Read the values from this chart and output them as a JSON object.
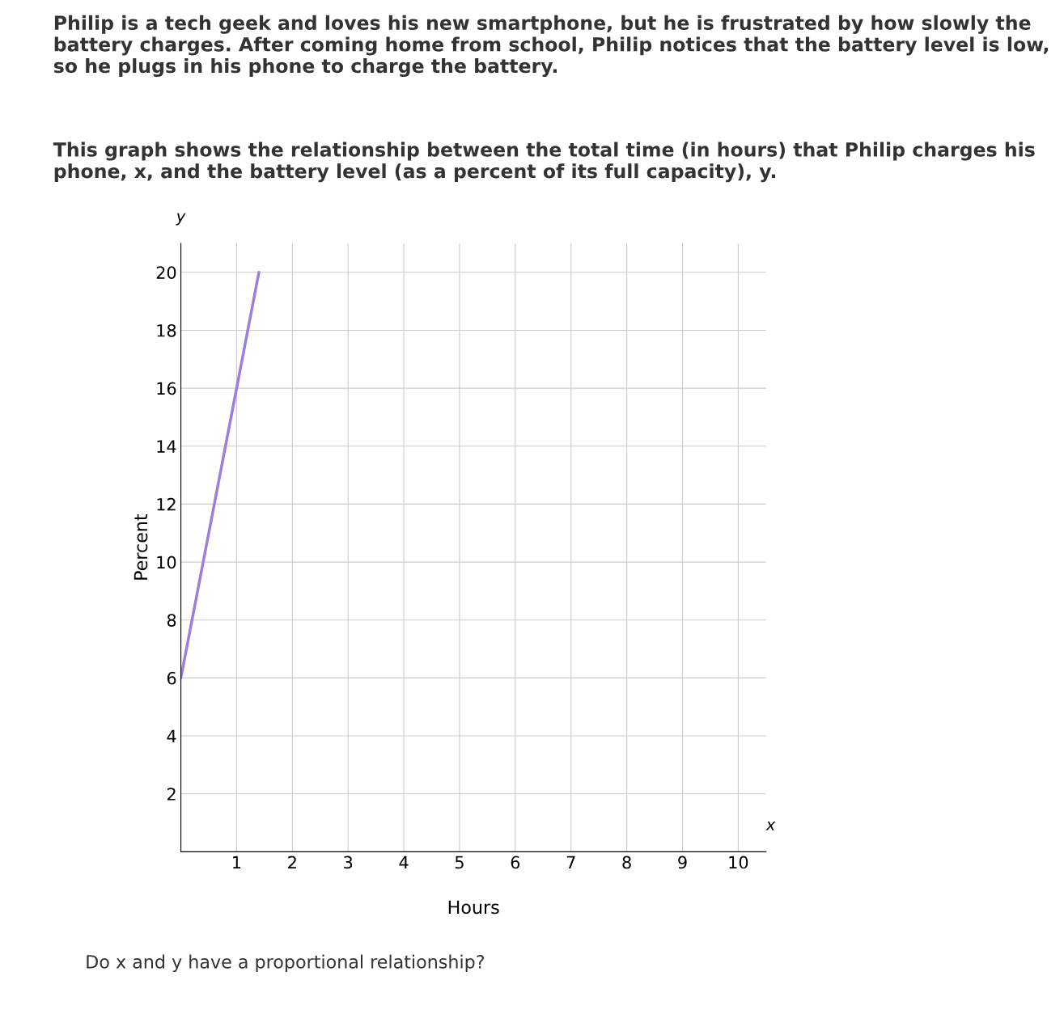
{
  "chart_data": {
    "type": "line",
    "title": "Philip is a tech geek and loves his new smartphone, but he is frustrated by how slowly the battery charges. After coming home from school, Philip notices that the battery level is low, so he plugs in his phone to charge the battery.",
    "subtitle": "This graph shows the relationship between the total time (in hours) that Philip charges his phone, x, and the battery level (as a percent of its full capacity), y.",
    "xlabel": "Hours",
    "ylabel": "Percent",
    "annotations": [
      "y",
      "x",
      "Do x and y have a proportional relationship?"
    ],
    "series": [
      {
        "color": "#9a7fe0",
        "x": [
          0,
          1,
          1.4
        ],
        "values": [
          6,
          16,
          20
        ]
      }
    ],
    "xlim": [
      0,
      10.5
    ],
    "ylim": [
      0,
      21
    ],
    "xticks": [
      1,
      2,
      3,
      4,
      5,
      6,
      7,
      8,
      9,
      10
    ],
    "yticks": [
      2,
      4,
      6,
      8,
      10,
      12,
      14,
      16,
      18,
      20
    ],
    "grid": true
  }
}
